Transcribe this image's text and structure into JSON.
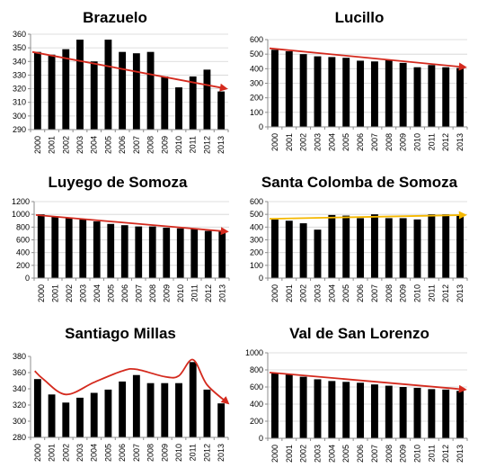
{
  "arrow_colors": {
    "red": "#d42a1e",
    "yellow": "#f5b800"
  },
  "chart_data": [
    {
      "type": "bar",
      "title": "Brazuelo",
      "categories": [
        "2000",
        "2001",
        "2002",
        "2003",
        "2004",
        "2005",
        "2006",
        "2007",
        "2008",
        "2009",
        "2010",
        "2011",
        "2012",
        "2013"
      ],
      "values": [
        347,
        345,
        349,
        356,
        340,
        356,
        347,
        346,
        347,
        329,
        321,
        329,
        334,
        318
      ],
      "ylim": [
        290,
        360
      ],
      "yticks": [
        290,
        300,
        310,
        320,
        330,
        340,
        350,
        360
      ],
      "grid": true,
      "trend": {
        "kind": "line",
        "color": "red",
        "from": 347,
        "to": 320
      }
    },
    {
      "type": "bar",
      "title": "Lucillo",
      "categories": [
        "2000",
        "2001",
        "2002",
        "2003",
        "2004",
        "2005",
        "2006",
        "2007",
        "2008",
        "2009",
        "2010",
        "2011",
        "2012",
        "2013"
      ],
      "values": [
        530,
        520,
        500,
        485,
        480,
        475,
        455,
        450,
        460,
        440,
        410,
        425,
        410,
        405
      ],
      "ylim": [
        0,
        600
      ],
      "yticks": [
        0,
        100,
        200,
        300,
        400,
        500,
        600
      ],
      "grid": true,
      "trend": {
        "kind": "line",
        "color": "red",
        "from": 540,
        "to": 410
      }
    },
    {
      "type": "bar",
      "title": "Luyego de Somoza",
      "categories": [
        "2000",
        "2001",
        "2002",
        "2003",
        "2004",
        "2005",
        "2006",
        "2007",
        "2008",
        "2009",
        "2010",
        "2011",
        "2012",
        "2013"
      ],
      "values": [
        1000,
        970,
        950,
        920,
        890,
        850,
        830,
        810,
        810,
        790,
        780,
        770,
        740,
        730
      ],
      "ylim": [
        0,
        1200
      ],
      "yticks": [
        0,
        200,
        400,
        600,
        800,
        1000,
        1200
      ],
      "grid": true,
      "trend": {
        "kind": "line",
        "color": "red",
        "from": 990,
        "to": 730
      }
    },
    {
      "type": "bar",
      "title": "Santa Colomba de Somoza",
      "categories": [
        "2000",
        "2001",
        "2002",
        "2003",
        "2004",
        "2005",
        "2006",
        "2007",
        "2008",
        "2009",
        "2010",
        "2011",
        "2012",
        "2013"
      ],
      "values": [
        460,
        450,
        430,
        380,
        495,
        490,
        470,
        500,
        470,
        470,
        460,
        500,
        500,
        495
      ],
      "ylim": [
        0,
        600
      ],
      "yticks": [
        0,
        100,
        200,
        300,
        400,
        500,
        600
      ],
      "grid": true,
      "trend": {
        "kind": "line",
        "color": "yellow",
        "from": 465,
        "to": 495
      }
    },
    {
      "type": "bar",
      "title": "Santiago Millas",
      "categories": [
        "2000",
        "2001",
        "2002",
        "2003",
        "2004",
        "2005",
        "2006",
        "2007",
        "2008",
        "2009",
        "2010",
        "2011",
        "2012",
        "2013"
      ],
      "values": [
        352,
        333,
        323,
        329,
        335,
        339,
        349,
        357,
        347,
        347,
        347,
        373,
        339,
        322
      ],
      "ylim": [
        280,
        380
      ],
      "yticks": [
        280,
        300,
        320,
        340,
        360,
        380
      ],
      "grid": false,
      "trend": {
        "kind": "curve",
        "color": "red",
        "points": [
          [
            -0.2,
            362
          ],
          [
            0.4,
            352
          ],
          [
            2,
            333
          ],
          [
            4,
            348
          ],
          [
            6,
            362
          ],
          [
            7,
            364
          ],
          [
            9,
            355
          ],
          [
            10,
            356
          ],
          [
            11,
            376
          ],
          [
            12,
            345
          ],
          [
            13.5,
            322
          ]
        ]
      }
    },
    {
      "type": "bar",
      "title": "Val de San Lorenzo",
      "categories": [
        "2000",
        "2001",
        "2002",
        "2003",
        "2004",
        "2005",
        "2006",
        "2007",
        "2008",
        "2009",
        "2010",
        "2011",
        "2012",
        "2013"
      ],
      "values": [
        760,
        745,
        720,
        690,
        670,
        660,
        650,
        630,
        615,
        600,
        590,
        575,
        570,
        555
      ],
      "ylim": [
        0,
        1000
      ],
      "yticks": [
        0,
        200,
        400,
        600,
        800,
        1000
      ],
      "grid": true,
      "trend": {
        "kind": "line",
        "color": "red",
        "from": 770,
        "to": 570
      }
    }
  ]
}
